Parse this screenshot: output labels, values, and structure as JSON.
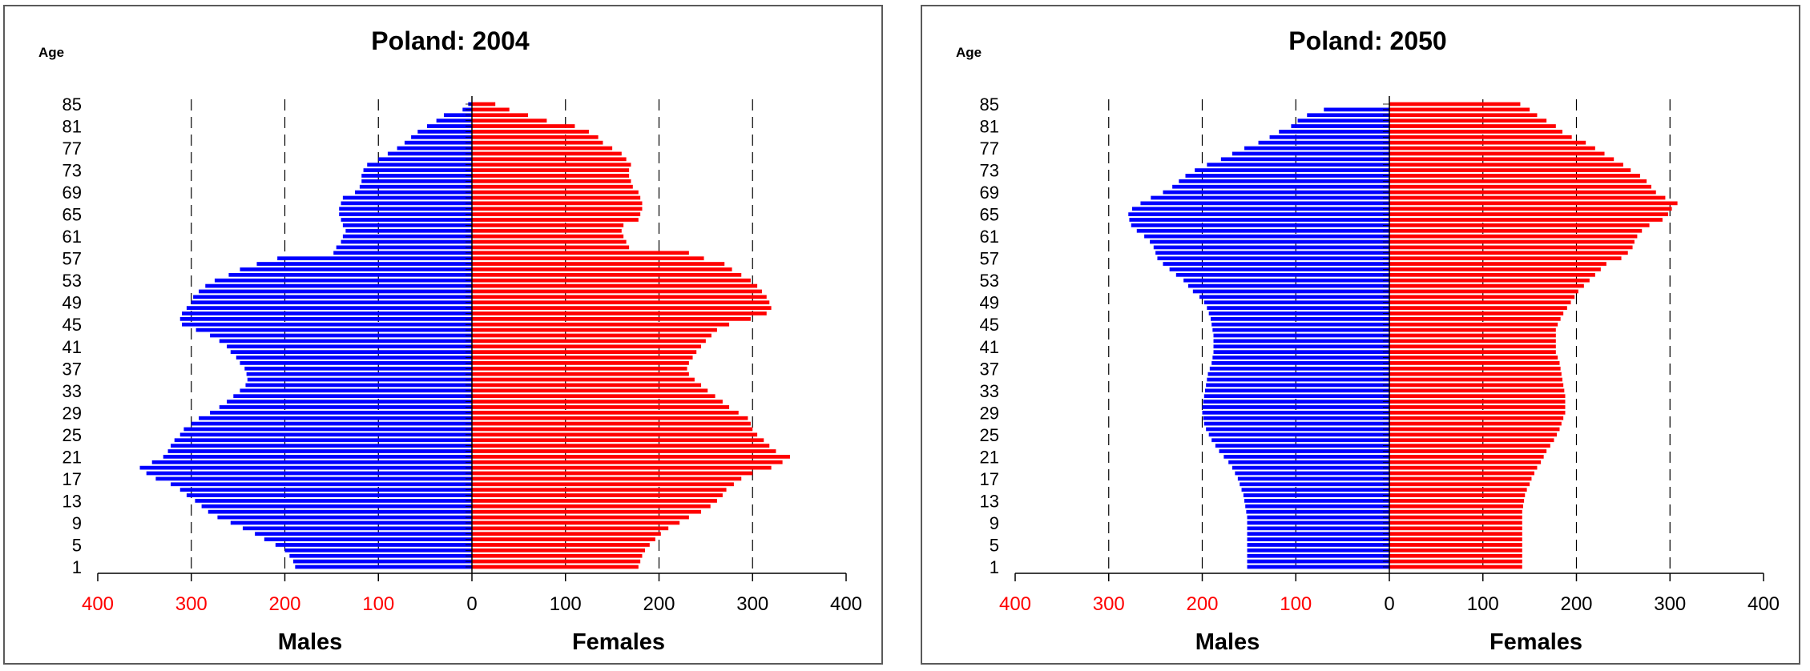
{
  "chart_data": [
    {
      "type": "bar",
      "orientation": "horizontal",
      "title": "Poland: 2004",
      "age_label": "Age",
      "xlabel_left": "Males",
      "xlabel_right": "Females",
      "xlim": [
        -400,
        400
      ],
      "x_tick_values": [
        -400,
        -300,
        -200,
        -100,
        0,
        100,
        200,
        300,
        400
      ],
      "x_tick_labels": [
        "400",
        "300",
        "200",
        "100",
        "0",
        "100",
        "200",
        "300",
        "400"
      ],
      "y_tick_labels": [
        "1",
        "5",
        "9",
        "13",
        "17",
        "21",
        "25",
        "29",
        "33",
        "37",
        "41",
        "45",
        "49",
        "53",
        "57",
        "61",
        "65",
        "69",
        "73",
        "77",
        "81",
        "85"
      ],
      "ages": [
        1,
        2,
        3,
        4,
        5,
        6,
        7,
        8,
        9,
        10,
        11,
        12,
        13,
        14,
        15,
        16,
        17,
        18,
        19,
        20,
        21,
        22,
        23,
        24,
        25,
        26,
        27,
        28,
        29,
        30,
        31,
        32,
        33,
        34,
        35,
        36,
        37,
        38,
        39,
        40,
        41,
        42,
        43,
        44,
        45,
        46,
        47,
        48,
        49,
        50,
        51,
        52,
        53,
        54,
        55,
        56,
        57,
        58,
        59,
        60,
        61,
        62,
        63,
        64,
        65,
        66,
        67,
        68,
        69,
        70,
        71,
        72,
        73,
        74,
        75,
        76,
        77,
        78,
        79,
        80,
        81,
        82,
        83,
        84,
        85
      ],
      "series": [
        {
          "name": "Males",
          "color": "#0000ff",
          "values": [
            189,
            191,
            195,
            200,
            210,
            222,
            232,
            245,
            258,
            272,
            282,
            289,
            296,
            305,
            312,
            322,
            338,
            348,
            355,
            342,
            330,
            325,
            322,
            318,
            312,
            308,
            300,
            292,
            280,
            270,
            262,
            255,
            248,
            242,
            240,
            241,
            243,
            248,
            252,
            258,
            262,
            270,
            280,
            295,
            310,
            312,
            310,
            305,
            300,
            298,
            292,
            285,
            275,
            260,
            248,
            230,
            208,
            148,
            145,
            140,
            138,
            135,
            138,
            140,
            142,
            142,
            140,
            138,
            125,
            120,
            118,
            118,
            116,
            112,
            100,
            90,
            80,
            72,
            65,
            58,
            48,
            38,
            30,
            10,
            4
          ]
        },
        {
          "name": "Females",
          "color": "#ff0000",
          "values": [
            178,
            180,
            182,
            185,
            190,
            196,
            202,
            210,
            222,
            232,
            245,
            255,
            262,
            268,
            272,
            280,
            288,
            300,
            320,
            332,
            340,
            325,
            318,
            312,
            305,
            300,
            298,
            295,
            285,
            275,
            268,
            260,
            252,
            245,
            238,
            232,
            230,
            232,
            236,
            240,
            245,
            250,
            256,
            262,
            275,
            298,
            315,
            320,
            318,
            315,
            310,
            305,
            298,
            288,
            278,
            270,
            248,
            232,
            168,
            165,
            162,
            160,
            162,
            178,
            180,
            182,
            182,
            180,
            178,
            172,
            170,
            168,
            168,
            170,
            165,
            160,
            150,
            140,
            135,
            125,
            110,
            80,
            60,
            40,
            25
          ]
        }
      ]
    },
    {
      "type": "bar",
      "orientation": "horizontal",
      "title": "Poland: 2050",
      "age_label": "Age",
      "xlabel_left": "Males",
      "xlabel_right": "Females",
      "xlim": [
        -400,
        400
      ],
      "x_tick_values": [
        -400,
        -300,
        -200,
        -100,
        0,
        100,
        200,
        300,
        400
      ],
      "x_tick_labels": [
        "400",
        "300",
        "200",
        "100",
        "0",
        "100",
        "200",
        "300",
        "400"
      ],
      "y_tick_labels": [
        "1",
        "5",
        "9",
        "13",
        "17",
        "21",
        "25",
        "29",
        "33",
        "37",
        "41",
        "45",
        "49",
        "53",
        "57",
        "61",
        "65",
        "69",
        "73",
        "77",
        "81",
        "85"
      ],
      "ages": [
        1,
        2,
        3,
        4,
        5,
        6,
        7,
        8,
        9,
        10,
        11,
        12,
        13,
        14,
        15,
        16,
        17,
        18,
        19,
        20,
        21,
        22,
        23,
        24,
        25,
        26,
        27,
        28,
        29,
        30,
        31,
        32,
        33,
        34,
        35,
        36,
        37,
        38,
        39,
        40,
        41,
        42,
        43,
        44,
        45,
        46,
        47,
        48,
        49,
        50,
        51,
        52,
        53,
        54,
        55,
        56,
        57,
        58,
        59,
        60,
        61,
        62,
        63,
        64,
        65,
        66,
        67,
        68,
        69,
        70,
        71,
        72,
        73,
        74,
        75,
        76,
        77,
        78,
        79,
        80,
        81,
        82,
        83,
        84,
        85
      ],
      "series": [
        {
          "name": "Males",
          "color": "#0000ff",
          "values": [
            152,
            152,
            152,
            152,
            152,
            152,
            152,
            152,
            152,
            152,
            153,
            154,
            155,
            156,
            158,
            160,
            162,
            165,
            168,
            172,
            177,
            182,
            186,
            190,
            193,
            196,
            198,
            199,
            200,
            200,
            199,
            198,
            197,
            196,
            195,
            194,
            192,
            190,
            189,
            188,
            188,
            188,
            188,
            189,
            190,
            191,
            193,
            195,
            198,
            203,
            210,
            215,
            220,
            228,
            235,
            242,
            248,
            250,
            252,
            256,
            262,
            270,
            276,
            278,
            279,
            275,
            266,
            255,
            242,
            232,
            225,
            218,
            208,
            195,
            180,
            168,
            155,
            140,
            128,
            118,
            105,
            98,
            88,
            70,
            0
          ]
        },
        {
          "name": "Females",
          "color": "#ff0000",
          "values": [
            142,
            142,
            142,
            142,
            142,
            142,
            142,
            142,
            142,
            142,
            142,
            143,
            144,
            145,
            147,
            150,
            152,
            155,
            158,
            162,
            165,
            168,
            172,
            176,
            179,
            182,
            184,
            186,
            188,
            188,
            188,
            188,
            187,
            186,
            185,
            184,
            183,
            182,
            180,
            178,
            178,
            178,
            178,
            178,
            180,
            183,
            186,
            190,
            194,
            198,
            202,
            208,
            214,
            220,
            226,
            232,
            248,
            255,
            260,
            262,
            265,
            270,
            278,
            292,
            298,
            302,
            308,
            295,
            285,
            280,
            275,
            268,
            258,
            250,
            240,
            230,
            220,
            210,
            195,
            185,
            178,
            168,
            158,
            150,
            140
          ]
        }
      ]
    }
  ]
}
